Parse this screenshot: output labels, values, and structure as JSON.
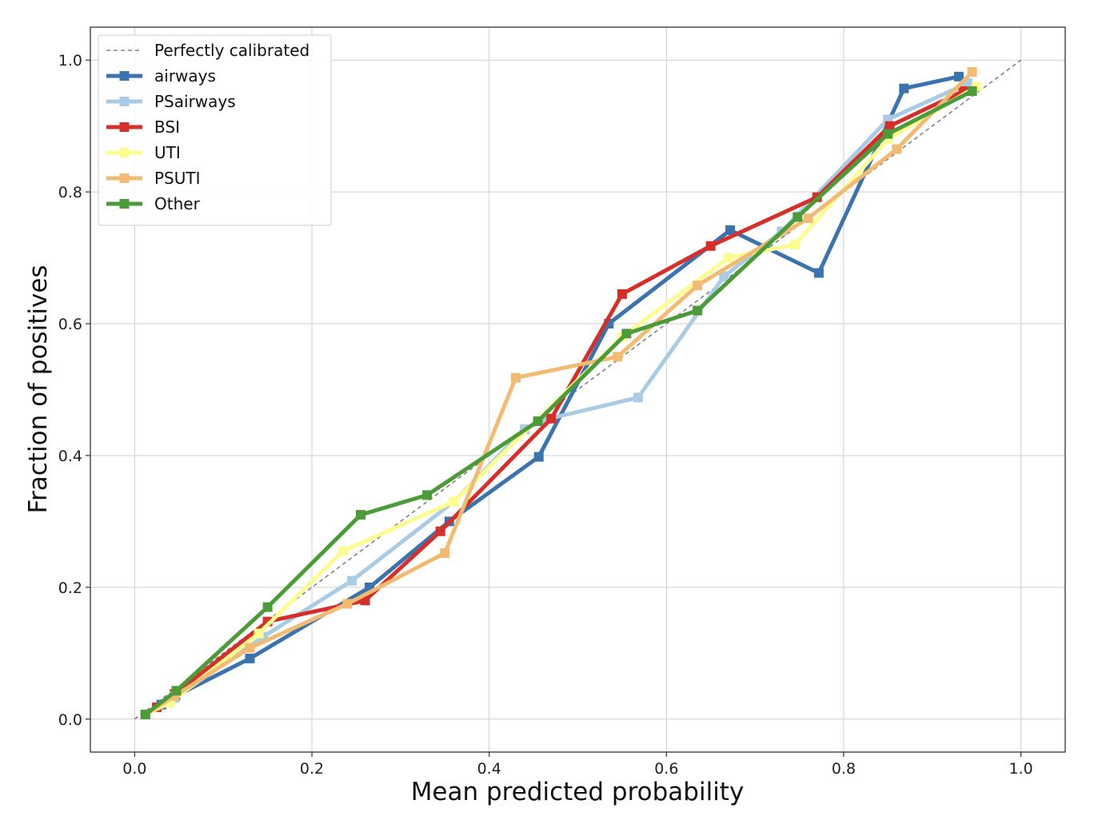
{
  "chart_data": {
    "type": "line",
    "title": "",
    "xlabel": "Mean predicted probability",
    "ylabel": "Fraction of positives",
    "xlim": [
      -0.05,
      1.05
    ],
    "ylim": [
      -0.05,
      1.05
    ],
    "xticks": [
      "0.0",
      "0.2",
      "0.4",
      "0.6",
      "0.8",
      "1.0"
    ],
    "yticks": [
      "0.0",
      "0.2",
      "0.4",
      "0.6",
      "0.8",
      "1.0"
    ],
    "grid": true,
    "legend_position": "top-left",
    "reference": {
      "name": "Perfectly calibrated",
      "x": [
        0,
        1
      ],
      "y": [
        0,
        1
      ],
      "color": "#808080"
    },
    "series": [
      {
        "name": "airways",
        "color": "#3a73ae",
        "x": [
          0.012,
          0.03,
          0.046,
          0.13,
          0.265,
          0.355,
          0.456,
          0.535,
          0.672,
          0.772,
          0.868,
          0.93
        ],
        "y": [
          0.007,
          0.022,
          0.035,
          0.092,
          0.2,
          0.3,
          0.398,
          0.6,
          0.742,
          0.677,
          0.957,
          0.975
        ]
      },
      {
        "name": "PSairways",
        "color": "#a9cce4",
        "x": [
          0.012,
          0.045,
          0.145,
          0.245,
          0.36,
          0.44,
          0.465,
          0.568,
          0.665,
          0.73,
          0.85,
          0.94
        ],
        "y": [
          0.007,
          0.032,
          0.125,
          0.21,
          0.33,
          0.44,
          0.455,
          0.488,
          0.672,
          0.74,
          0.91,
          0.965
        ]
      },
      {
        "name": "BSI",
        "color": "#d62f2a",
        "x": [
          0.012,
          0.025,
          0.045,
          0.15,
          0.26,
          0.345,
          0.47,
          0.55,
          0.65,
          0.77,
          0.852,
          0.935
        ],
        "y": [
          0.007,
          0.018,
          0.038,
          0.148,
          0.18,
          0.285,
          0.456,
          0.645,
          0.718,
          0.792,
          0.9,
          0.953
        ]
      },
      {
        "name": "UTI",
        "color": "#fdfd8f",
        "x": [
          0.012,
          0.04,
          0.14,
          0.235,
          0.36,
          0.55,
          0.67,
          0.745,
          0.85,
          0.95
        ],
        "y": [
          0.007,
          0.025,
          0.13,
          0.255,
          0.33,
          0.58,
          0.7,
          0.72,
          0.88,
          0.96
        ]
      },
      {
        "name": "PSUTI",
        "color": "#f2bb72",
        "x": [
          0.012,
          0.045,
          0.13,
          0.24,
          0.35,
          0.43,
          0.545,
          0.635,
          0.76,
          0.86,
          0.945
        ],
        "y": [
          0.007,
          0.035,
          0.108,
          0.175,
          0.252,
          0.518,
          0.55,
          0.658,
          0.76,
          0.865,
          0.982
        ]
      },
      {
        "name": "Other",
        "color": "#4b9c39",
        "x": [
          0.012,
          0.047,
          0.15,
          0.255,
          0.33,
          0.455,
          0.555,
          0.635,
          0.748,
          0.85,
          0.945
        ],
        "y": [
          0.007,
          0.043,
          0.17,
          0.31,
          0.34,
          0.452,
          0.585,
          0.62,
          0.762,
          0.888,
          0.953
        ]
      }
    ]
  }
}
